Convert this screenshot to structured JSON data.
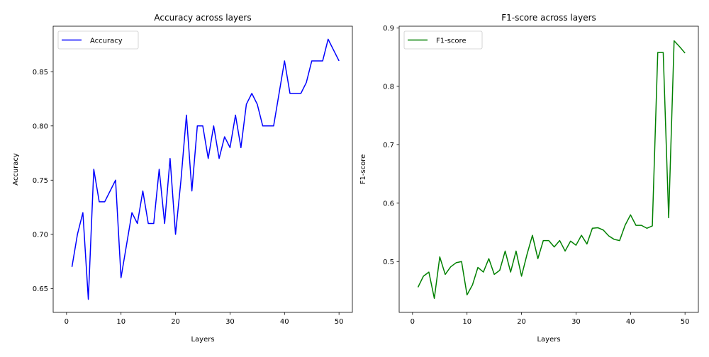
{
  "chart_data": [
    {
      "type": "line",
      "title": "Accuracy across layers",
      "xlabel": "Layers",
      "ylabel": "Accuracy",
      "xlim": [
        -2.45,
        52.45
      ],
      "ylim": [
        0.628,
        0.892
      ],
      "xticks": [
        0,
        10,
        20,
        30,
        40,
        50
      ],
      "yticks": [
        0.65,
        0.7,
        0.75,
        0.8,
        0.85
      ],
      "xtick_labels": [
        "0",
        "10",
        "20",
        "30",
        "40",
        "50"
      ],
      "ytick_labels": [
        "0.65",
        "0.70",
        "0.75",
        "0.80",
        "0.85"
      ],
      "legend_position": "top-left",
      "grid": false,
      "series": [
        {
          "name": "Accuracy",
          "color": "#0000ff",
          "x": [
            1,
            2,
            3,
            4,
            5,
            6,
            7,
            8,
            9,
            10,
            11,
            12,
            13,
            14,
            15,
            16,
            17,
            18,
            19,
            20,
            21,
            22,
            23,
            24,
            25,
            26,
            27,
            28,
            29,
            30,
            31,
            32,
            33,
            34,
            35,
            36,
            37,
            38,
            39,
            40,
            41,
            42,
            43,
            44,
            45,
            46,
            47,
            48,
            49,
            50
          ],
          "values": [
            0.67,
            0.7,
            0.72,
            0.64,
            0.76,
            0.73,
            0.73,
            0.74,
            0.75,
            0.66,
            0.69,
            0.72,
            0.71,
            0.74,
            0.71,
            0.71,
            0.76,
            0.71,
            0.77,
            0.7,
            0.75,
            0.81,
            0.74,
            0.8,
            0.8,
            0.77,
            0.8,
            0.77,
            0.79,
            0.78,
            0.81,
            0.78,
            0.82,
            0.83,
            0.82,
            0.8,
            0.8,
            0.8,
            0.83,
            0.86,
            0.83,
            0.83,
            0.83,
            0.84,
            0.86,
            0.86,
            0.86,
            0.88,
            0.87,
            0.86
          ]
        }
      ]
    },
    {
      "type": "line",
      "title": "F1-score across layers",
      "xlabel": "Layers",
      "ylabel": "F1-score",
      "xlim": [
        -2.45,
        52.45
      ],
      "ylim": [
        0.413,
        0.903
      ],
      "xticks": [
        0,
        10,
        20,
        30,
        40,
        50
      ],
      "yticks": [
        0.5,
        0.6,
        0.7,
        0.8,
        0.9
      ],
      "xtick_labels": [
        "0",
        "10",
        "20",
        "30",
        "40",
        "50"
      ],
      "ytick_labels": [
        "0.5",
        "0.6",
        "0.7",
        "0.8",
        "0.9"
      ],
      "legend_position": "top-left",
      "grid": false,
      "series": [
        {
          "name": "F1-score",
          "color": "#008000",
          "x": [
            1,
            2,
            3,
            4,
            5,
            6,
            7,
            8,
            9,
            10,
            11,
            12,
            13,
            14,
            15,
            16,
            17,
            18,
            19,
            20,
            21,
            22,
            23,
            24,
            25,
            26,
            27,
            28,
            29,
            30,
            31,
            32,
            33,
            34,
            35,
            36,
            37,
            38,
            39,
            40,
            41,
            42,
            43,
            44,
            45,
            46,
            47,
            48,
            49,
            50
          ],
          "values": [
            0.456,
            0.475,
            0.482,
            0.437,
            0.508,
            0.478,
            0.491,
            0.498,
            0.5,
            0.443,
            0.46,
            0.49,
            0.482,
            0.505,
            0.478,
            0.485,
            0.518,
            0.482,
            0.518,
            0.475,
            0.512,
            0.545,
            0.505,
            0.536,
            0.536,
            0.525,
            0.536,
            0.518,
            0.535,
            0.528,
            0.545,
            0.53,
            0.557,
            0.558,
            0.554,
            0.544,
            0.538,
            0.536,
            0.562,
            0.58,
            0.562,
            0.562,
            0.557,
            0.561,
            0.858,
            0.858,
            0.575,
            0.878,
            0.868,
            0.857
          ]
        }
      ]
    }
  ]
}
